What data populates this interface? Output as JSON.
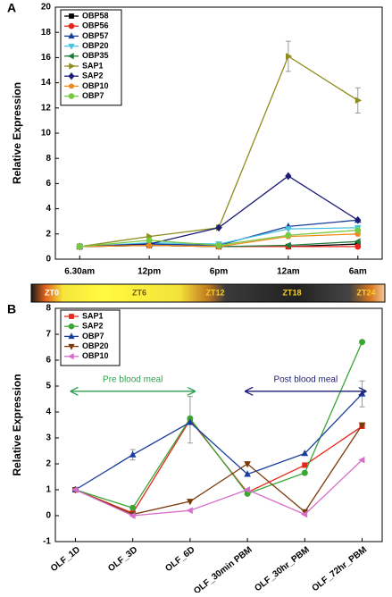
{
  "chart_data": [
    {
      "type": "line",
      "panel_label": "A",
      "y_label": "Relative Expression",
      "categories": [
        "6.30am",
        "12pm",
        "6pm",
        "12am",
        "6am"
      ],
      "ylim": [
        0,
        20
      ],
      "yticks": [
        0,
        2,
        4,
        6,
        8,
        10,
        12,
        14,
        16,
        18,
        20
      ],
      "grid": false,
      "legend": "upper left",
      "series": [
        {
          "name": "OBP58",
          "color": "#000000",
          "marker": "square",
          "values": [
            1,
            1.1,
            1.0,
            1.0,
            1.2
          ]
        },
        {
          "name": "OBP56",
          "color": "#e8261c",
          "marker": "circle",
          "values": [
            1,
            1.1,
            1.0,
            1.0,
            1.0
          ]
        },
        {
          "name": "OBP57",
          "color": "#1a3d9c",
          "marker": "triangle-up",
          "values": [
            1,
            1.2,
            1.1,
            2.6,
            3.1
          ]
        },
        {
          "name": "OBP20",
          "color": "#47c5e0",
          "marker": "triangle-down",
          "values": [
            1,
            1.3,
            1.2,
            2.4,
            2.5
          ]
        },
        {
          "name": "OBP35",
          "color": "#1d7a3a",
          "marker": "triangle-left",
          "values": [
            1,
            1.1,
            1.0,
            1.1,
            1.4
          ]
        },
        {
          "name": "SAP1",
          "color": "#8e8c1e",
          "marker": "triangle-right",
          "values": [
            1,
            1.8,
            2.5,
            16.1,
            12.6
          ],
          "errors": [
            null,
            null,
            null,
            1.2,
            1.0
          ]
        },
        {
          "name": "SAP2",
          "color": "#1c1c78",
          "marker": "diamond",
          "values": [
            1,
            1.2,
            2.5,
            6.6,
            3.1
          ]
        },
        {
          "name": "OBP10",
          "color": "#f08a1c",
          "marker": "pentagon",
          "values": [
            1,
            1.1,
            1.0,
            1.8,
            2.0
          ]
        },
        {
          "name": "OBP7",
          "color": "#7ac943",
          "marker": "circle",
          "values": [
            1,
            1.5,
            1.1,
            1.9,
            2.3
          ]
        }
      ],
      "zt_labels": [
        "ZT0",
        "ZT6",
        "ZT12",
        "ZT18",
        "ZT24"
      ]
    },
    {
      "type": "line",
      "panel_label": "B",
      "y_label": "Relative Expression",
      "categories": [
        "OLF_1D",
        "OLF_3D",
        "OLF_6D",
        "OLF_30min PBM",
        "OLF_30hr_PBM",
        "OLF_72hr_PBM"
      ],
      "ylim": [
        -1,
        8
      ],
      "yticks": [
        -1,
        0,
        1,
        2,
        3,
        4,
        5,
        6,
        7,
        8
      ],
      "grid": false,
      "legend": "upper left",
      "series": [
        {
          "name": "SAP1",
          "color": "#e8261c",
          "marker": "square",
          "values": [
            1,
            0.1,
            3.7,
            0.9,
            1.95,
            3.45
          ],
          "errors": [
            null,
            null,
            0.9,
            null,
            null,
            null
          ]
        },
        {
          "name": "SAP2",
          "color": "#3aa635",
          "marker": "circle",
          "values": [
            1,
            0.3,
            3.75,
            0.85,
            1.65,
            6.7
          ]
        },
        {
          "name": "OBP7",
          "color": "#1a3d9c",
          "marker": "triangle-up",
          "values": [
            1,
            2.35,
            3.6,
            1.6,
            2.4,
            4.7
          ],
          "errors": [
            null,
            0.2,
            null,
            null,
            null,
            0.5
          ]
        },
        {
          "name": "OBP20",
          "color": "#7a3a0c",
          "marker": "triangle-down",
          "values": [
            1,
            0.05,
            0.55,
            2.0,
            0.15,
            3.5
          ]
        },
        {
          "name": "OBP10",
          "color": "#d56fc9",
          "marker": "triangle-left",
          "values": [
            1,
            0,
            0.2,
            1.0,
            0.05,
            2.15
          ]
        }
      ],
      "annotations": [
        {
          "text": "Pre blood meal",
          "color": "#2e9e4f"
        },
        {
          "text": "Post blood meal",
          "color": "#1c1c78"
        }
      ]
    }
  ]
}
